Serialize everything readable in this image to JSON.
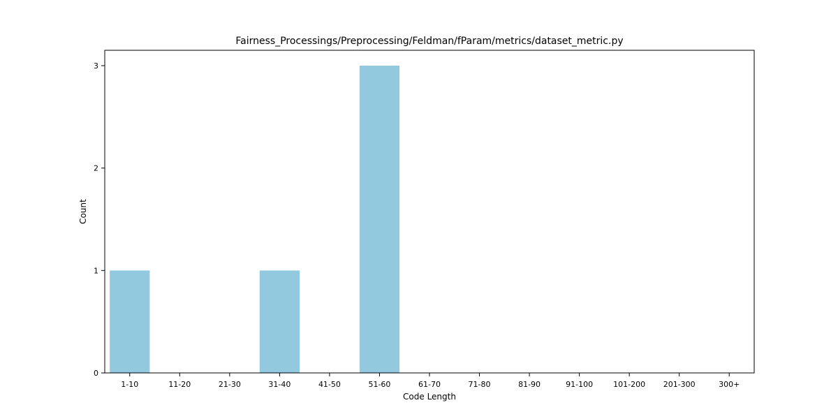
{
  "chart_data": {
    "type": "bar",
    "title": "Fairness_Processings/Preprocessing/Feldman/fParam/metrics/dataset_metric.py",
    "xlabel": "Code Length",
    "ylabel": "Count",
    "categories": [
      "1-10",
      "11-20",
      "21-30",
      "31-40",
      "41-50",
      "51-60",
      "61-70",
      "71-80",
      "81-90",
      "91-100",
      "101-200",
      "201-300",
      "300+"
    ],
    "values": [
      1,
      0,
      0,
      1,
      0,
      3,
      0,
      0,
      0,
      0,
      0,
      0,
      0
    ],
    "ylim": [
      0,
      3.15
    ],
    "yticks": [
      0,
      1,
      2,
      3
    ],
    "grid": false,
    "bar_color": "#92c9df"
  }
}
